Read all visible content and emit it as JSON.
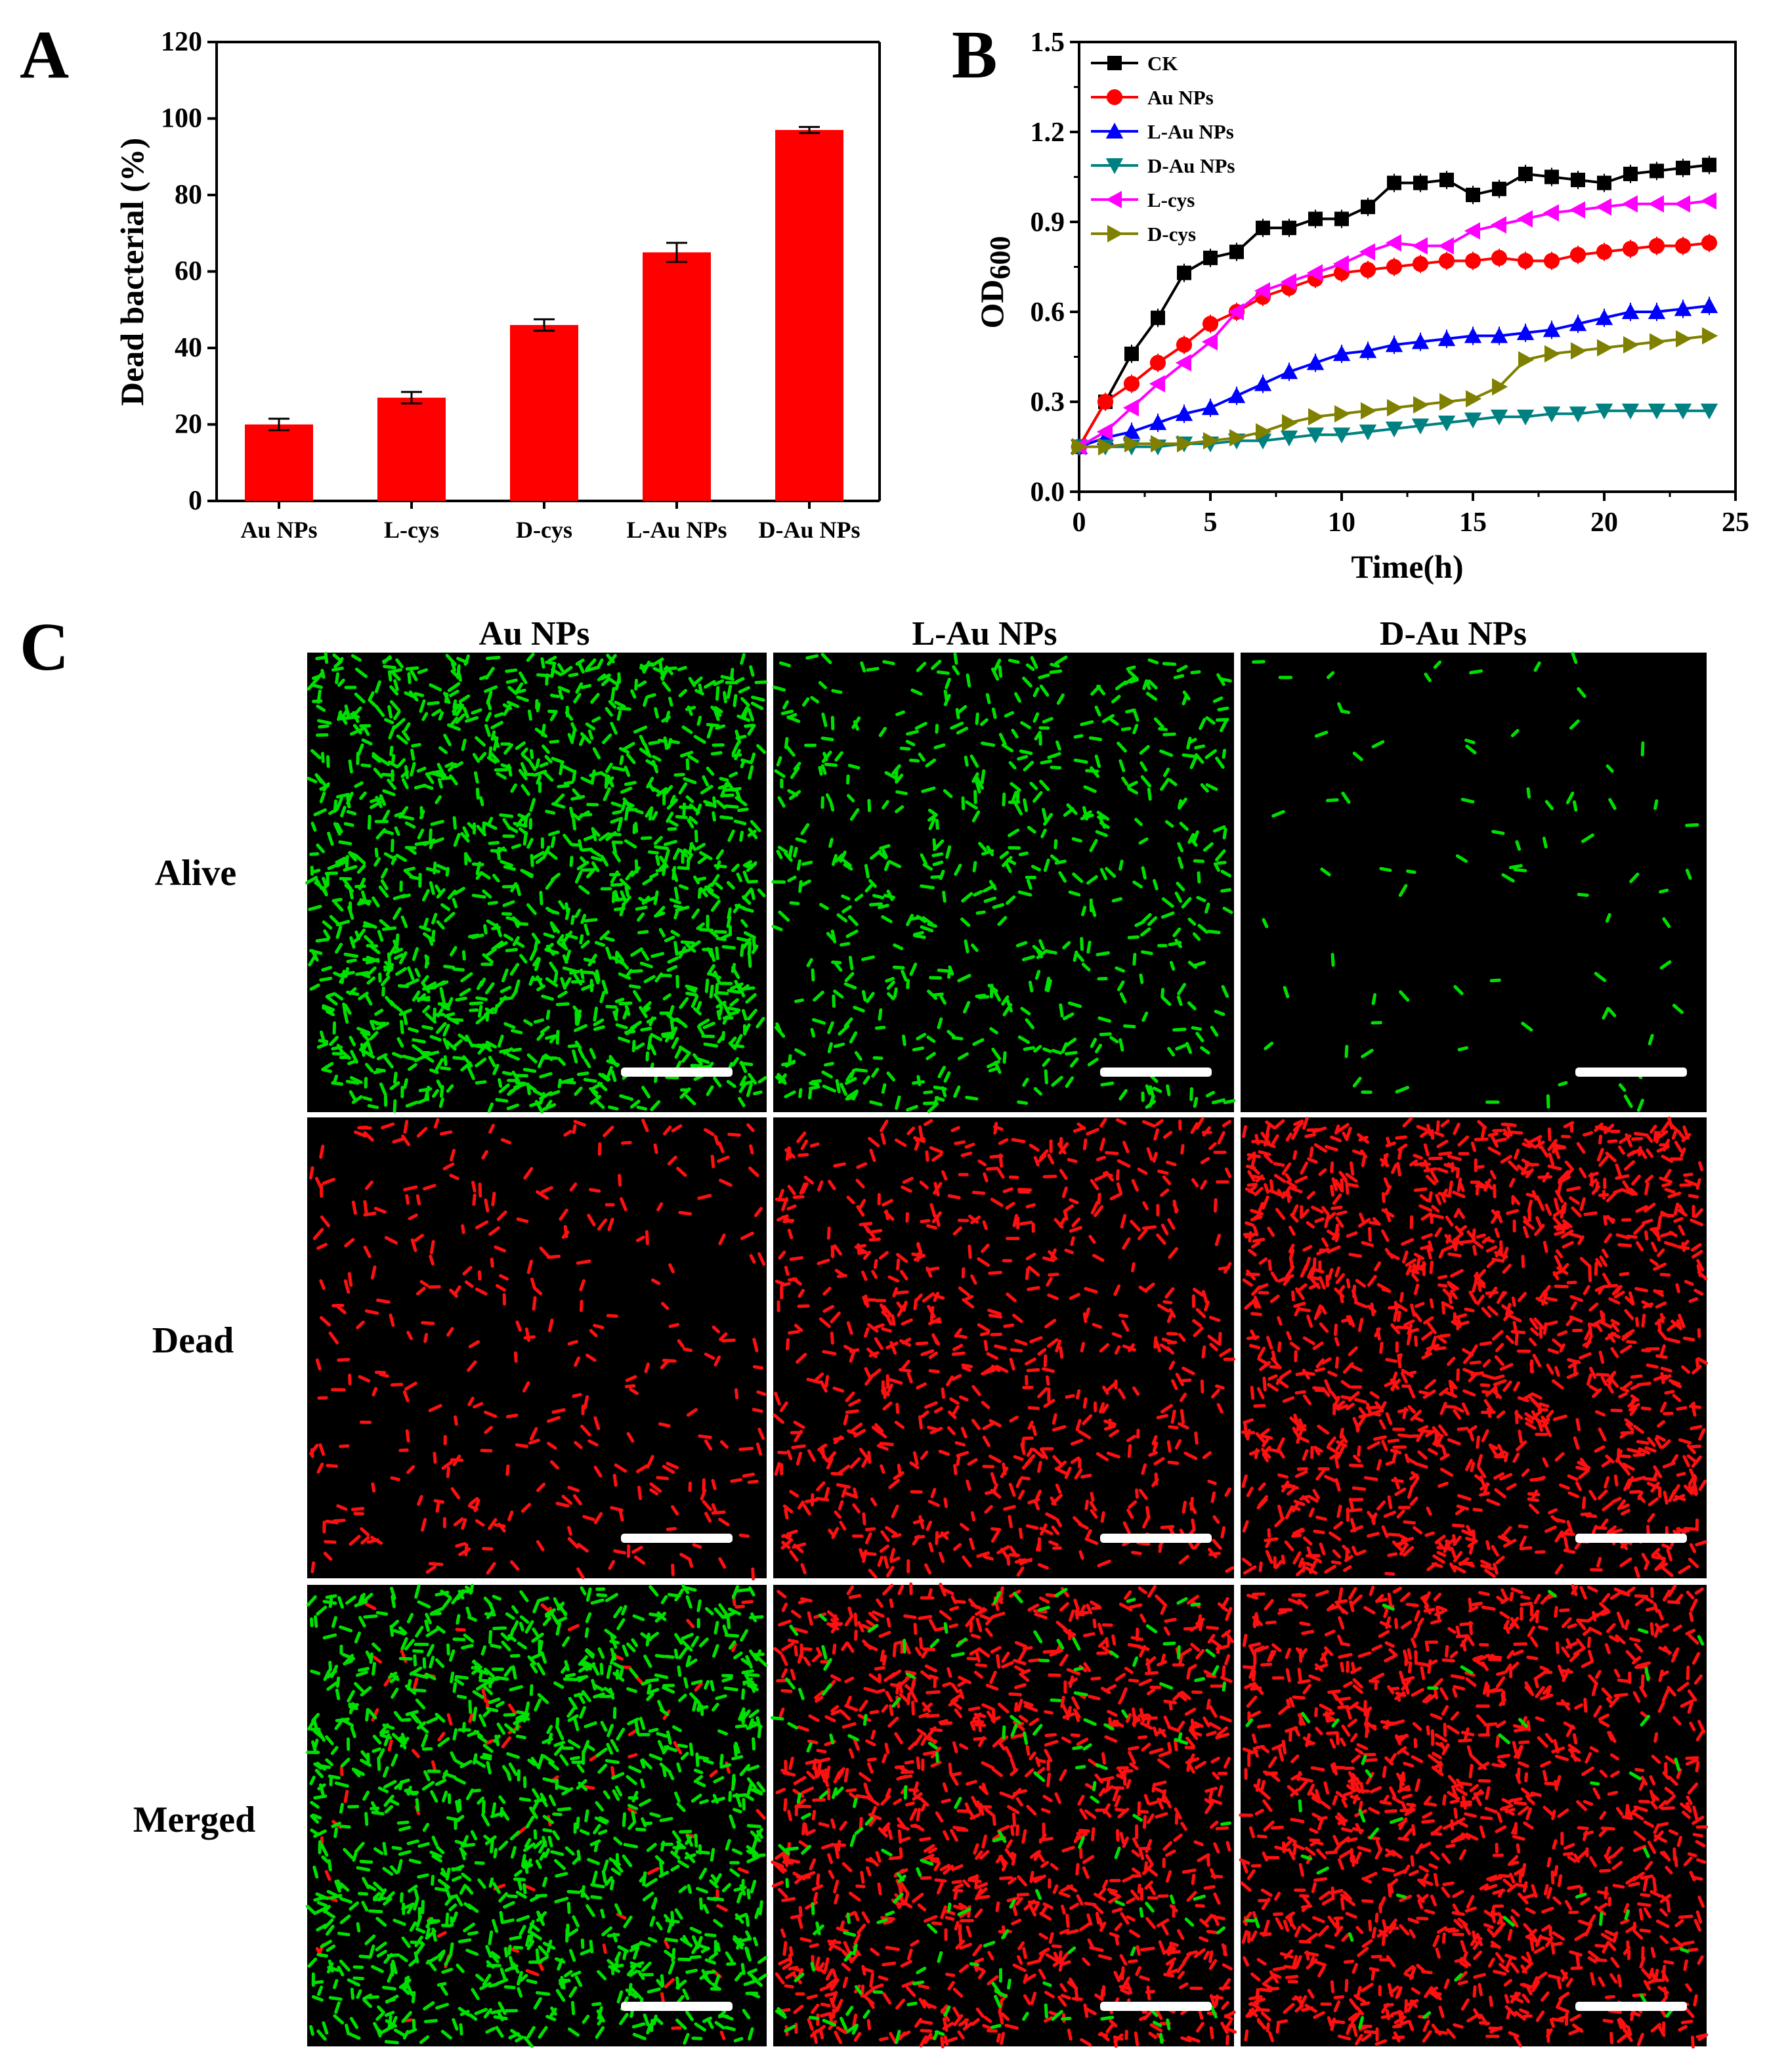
{
  "panels": {
    "a": "A",
    "b": "B",
    "c": "C"
  },
  "chart_data": [
    {
      "type": "bar",
      "panel": "A",
      "categories": [
        "Au NPs",
        "L-cys",
        "D-cys",
        "L-Au NPs",
        "D-Au NPs"
      ],
      "values": [
        20,
        27,
        46,
        65,
        97
      ],
      "errors": [
        1.5,
        1.5,
        1.5,
        2.5,
        0.8
      ],
      "xlabel": "",
      "ylabel": "Dead bacterial (%)",
      "ylim": [
        0,
        120
      ],
      "yticks": [
        "0",
        "20",
        "40",
        "60",
        "80",
        "100",
        "120"
      ],
      "bar_color": "#ff0000"
    },
    {
      "type": "line",
      "panel": "B",
      "xlabel": "Time(h)",
      "ylabel": "OD600",
      "ylabel_main": "OD",
      "ylabel_sub": "600",
      "xlim": [
        0,
        25
      ],
      "ylim": [
        0,
        1.5
      ],
      "xticks": [
        "0",
        "5",
        "10",
        "15",
        "20",
        "25"
      ],
      "yticks": [
        "0.0",
        "0.3",
        "0.6",
        "0.9",
        "1.2",
        "1.5"
      ],
      "x": [
        0,
        1,
        2,
        3,
        4,
        5,
        6,
        7,
        8,
        9,
        10,
        11,
        12,
        13,
        14,
        15,
        16,
        17,
        18,
        19,
        20,
        21,
        22,
        23,
        24
      ],
      "legend_position": "top-left",
      "series": [
        {
          "name": "CK",
          "color": "#000000",
          "marker": "square",
          "values": [
            0.15,
            0.3,
            0.46,
            0.58,
            0.73,
            0.78,
            0.8,
            0.88,
            0.88,
            0.91,
            0.91,
            0.95,
            1.03,
            1.03,
            1.04,
            0.99,
            1.01,
            1.06,
            1.05,
            1.04,
            1.03,
            1.06,
            1.07,
            1.08,
            1.09
          ]
        },
        {
          "name": "Au NPs",
          "color": "#ff0000",
          "marker": "circle",
          "values": [
            0.15,
            0.3,
            0.36,
            0.43,
            0.49,
            0.56,
            0.6,
            0.65,
            0.68,
            0.71,
            0.73,
            0.74,
            0.75,
            0.76,
            0.77,
            0.77,
            0.78,
            0.77,
            0.77,
            0.79,
            0.8,
            0.81,
            0.82,
            0.82,
            0.83
          ]
        },
        {
          "name": "L-Au NPs",
          "color": "#0000ff",
          "marker": "triangle-up",
          "values": [
            0.15,
            0.18,
            0.2,
            0.23,
            0.26,
            0.28,
            0.32,
            0.36,
            0.4,
            0.43,
            0.46,
            0.47,
            0.49,
            0.5,
            0.51,
            0.52,
            0.52,
            0.53,
            0.54,
            0.56,
            0.58,
            0.6,
            0.6,
            0.61,
            0.62
          ]
        },
        {
          "name": "D-Au NPs",
          "color": "#008080",
          "marker": "triangle-down",
          "values": [
            0.15,
            0.15,
            0.15,
            0.15,
            0.16,
            0.16,
            0.17,
            0.17,
            0.18,
            0.19,
            0.19,
            0.2,
            0.21,
            0.22,
            0.23,
            0.24,
            0.25,
            0.25,
            0.26,
            0.26,
            0.27,
            0.27,
            0.27,
            0.27,
            0.27
          ]
        },
        {
          "name": "L-cys",
          "color": "#ff00ff",
          "marker": "triangle-left",
          "values": [
            0.15,
            0.2,
            0.28,
            0.36,
            0.43,
            0.5,
            0.6,
            0.67,
            0.7,
            0.73,
            0.76,
            0.8,
            0.83,
            0.82,
            0.82,
            0.87,
            0.89,
            0.91,
            0.93,
            0.94,
            0.95,
            0.96,
            0.96,
            0.96,
            0.97
          ]
        },
        {
          "name": "D-cys",
          "color": "#808000",
          "marker": "triangle-right",
          "values": [
            0.15,
            0.15,
            0.16,
            0.16,
            0.16,
            0.17,
            0.18,
            0.2,
            0.23,
            0.25,
            0.26,
            0.27,
            0.28,
            0.29,
            0.3,
            0.31,
            0.35,
            0.44,
            0.46,
            0.47,
            0.48,
            0.49,
            0.5,
            0.51,
            0.52
          ]
        }
      ]
    },
    {
      "type": "image-grid",
      "panel": "C",
      "columns": [
        "Au NPs",
        "L-Au NPs",
        "D-Au NPs"
      ],
      "rows": [
        "Alive",
        "Dead",
        "Merged"
      ],
      "live_color": "#00e000",
      "dead_color": "#ff1010",
      "green_density": [
        [
          1.0,
          0.45,
          0.06
        ],
        [
          0,
          0,
          0
        ],
        [
          0.9,
          0.12,
          0.03
        ]
      ],
      "red_density": [
        [
          0,
          0,
          0
        ],
        [
          0.25,
          0.55,
          1.0
        ],
        [
          0.06,
          0.85,
          0.95
        ]
      ]
    }
  ]
}
